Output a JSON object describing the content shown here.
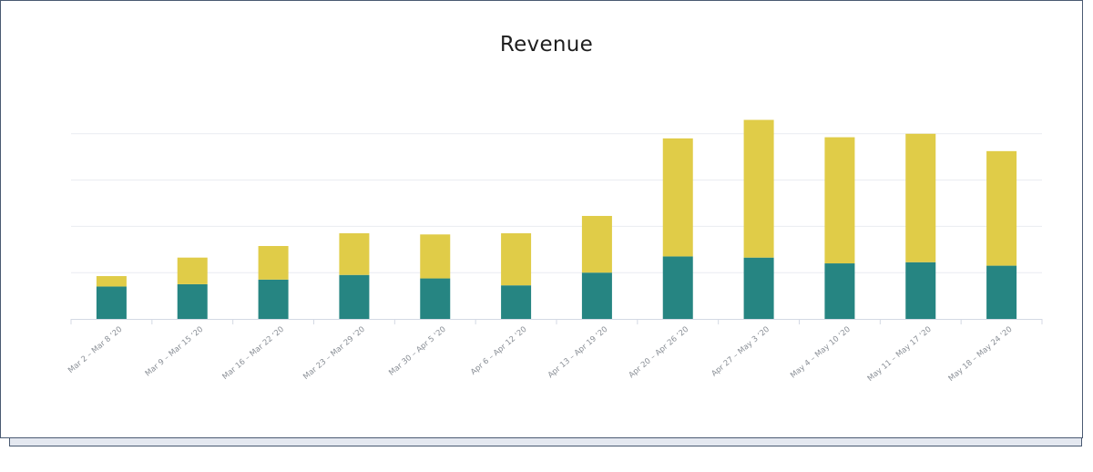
{
  "chart_data": {
    "type": "bar",
    "stacked": true,
    "title": "Revenue",
    "xlabel": "",
    "ylabel": "",
    "ylim": [
      0,
      100
    ],
    "grid": true,
    "legend": "none",
    "categories": [
      "Mar 2 – Mar 8 ‘20",
      "Mar 9 – Mar 15 ‘20",
      "Mar 16 – Mar 22 ‘20",
      "Mar 23 – Mar 29 ‘20",
      "Mar 30 – Apr 5 ‘20",
      "Apr 6 – Apr 12 ‘20",
      "Apr 13 – Apr 19 ‘20",
      "Apr 20 – Apr 26 ‘20",
      "Apr 27 – May 3 ‘20",
      "May 4 – May 10 ‘20",
      "May 11 – May 17 ‘20",
      "May 18 – May 24 ‘20"
    ],
    "series": [
      {
        "color": "#268582",
        "values": [
          14,
          15,
          17,
          19,
          17.5,
          14.5,
          20,
          27,
          26.5,
          24,
          24.5,
          23
        ]
      },
      {
        "color": "#e0cc48",
        "values": [
          4.5,
          11.5,
          14.5,
          18,
          19,
          22.5,
          24.5,
          51,
          59.5,
          54.5,
          55.5,
          49.5
        ]
      }
    ]
  }
}
